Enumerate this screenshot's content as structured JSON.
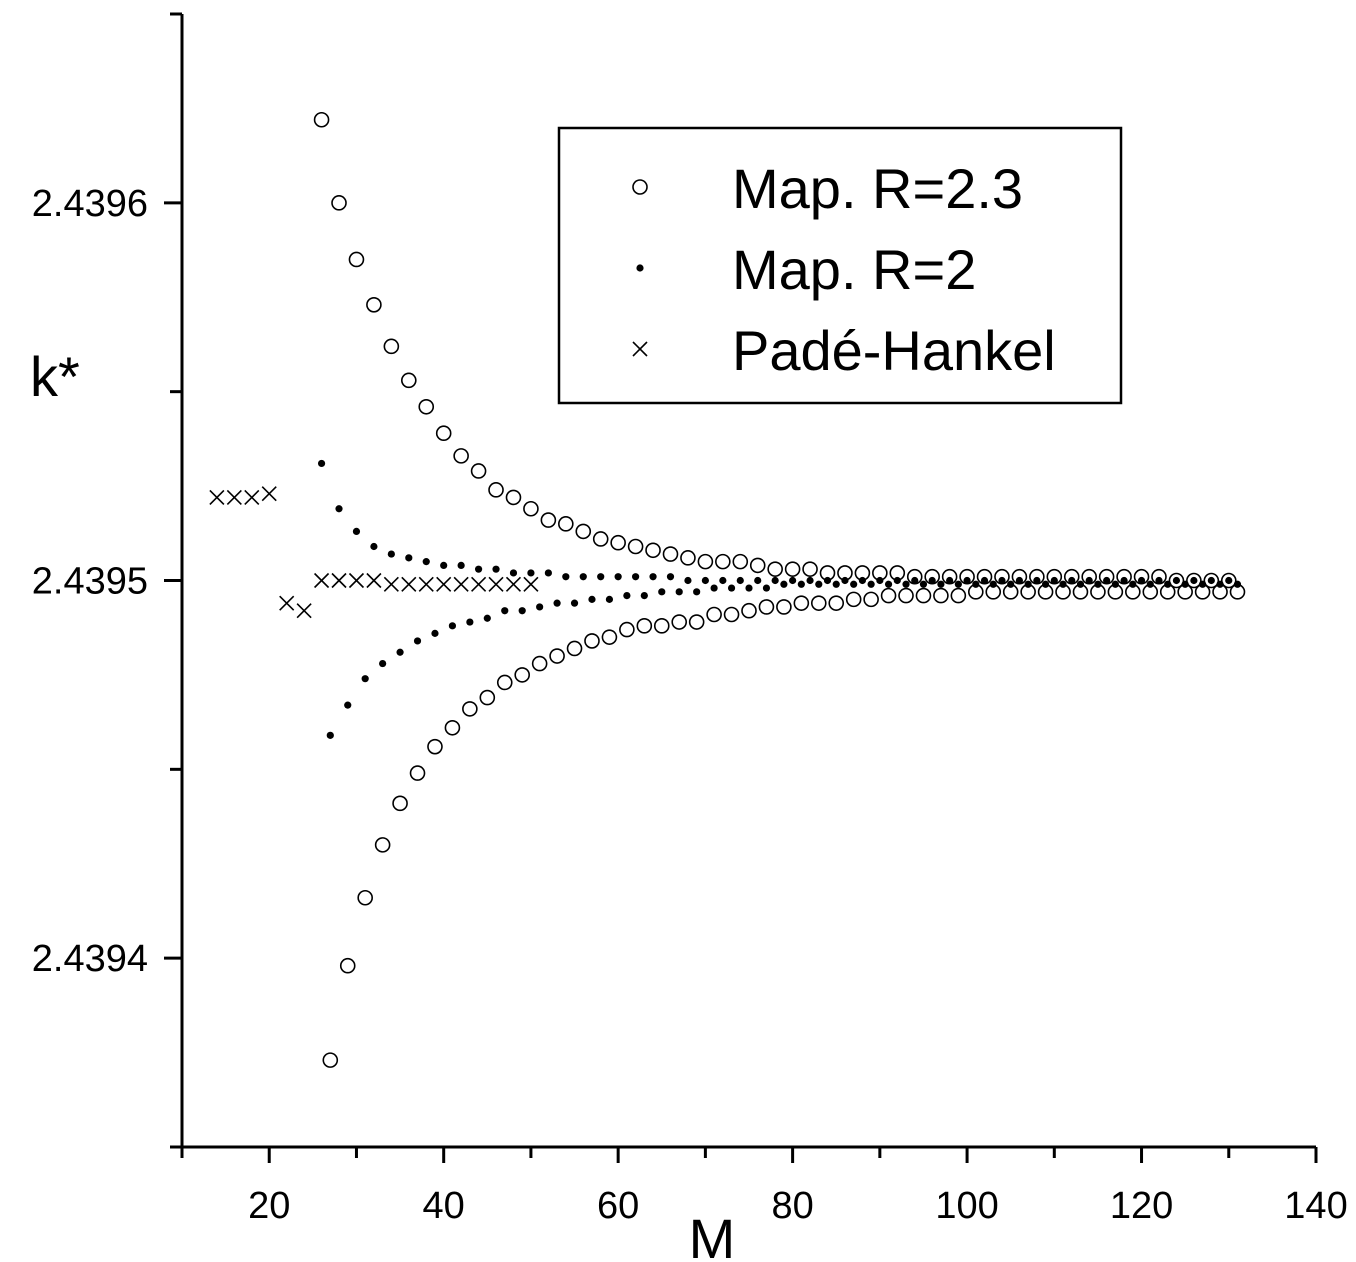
{
  "chart_data": {
    "type": "scatter",
    "xlabel": "M",
    "ylabel": "k*",
    "xlim": [
      10,
      140
    ],
    "ylim": [
      2.43935,
      2.43965
    ],
    "x_ticks": [
      20,
      40,
      60,
      80,
      100,
      120,
      140
    ],
    "x_tick_labels": [
      "20",
      "40",
      "60",
      "80",
      "100",
      "120",
      "140"
    ],
    "y_ticks": [
      2.4394,
      2.4395,
      2.4396
    ],
    "y_tick_labels": [
      "2.4394",
      "2.4395",
      "2.4396"
    ],
    "grid": false,
    "legend_position": "top-right",
    "series": [
      {
        "name": "Map. R=2.3",
        "marker": "open-circle",
        "points": [
          [
            26,
            2.439622
          ],
          [
            27,
            2.439373
          ],
          [
            28,
            2.4396
          ],
          [
            29,
            2.439398
          ],
          [
            30,
            2.439585
          ],
          [
            31,
            2.439416
          ],
          [
            32,
            2.439573
          ],
          [
            33,
            2.43943
          ],
          [
            34,
            2.439562
          ],
          [
            35,
            2.439441
          ],
          [
            36,
            2.439553
          ],
          [
            37,
            2.439449
          ],
          [
            38,
            2.439546
          ],
          [
            39,
            2.439456
          ],
          [
            40,
            2.439539
          ],
          [
            41,
            2.439461
          ],
          [
            42,
            2.439533
          ],
          [
            43,
            2.439466
          ],
          [
            44,
            2.439529
          ],
          [
            45,
            2.439469
          ],
          [
            46,
            2.439524
          ],
          [
            47,
            2.439473
          ],
          [
            48,
            2.439522
          ],
          [
            49,
            2.439475
          ],
          [
            50,
            2.439519
          ],
          [
            51,
            2.439478
          ],
          [
            52,
            2.439516
          ],
          [
            53,
            2.43948
          ],
          [
            54,
            2.439515
          ],
          [
            55,
            2.439482
          ],
          [
            56,
            2.439513
          ],
          [
            57,
            2.439484
          ],
          [
            58,
            2.439511
          ],
          [
            59,
            2.439485
          ],
          [
            60,
            2.43951
          ],
          [
            61,
            2.439487
          ],
          [
            62,
            2.439509
          ],
          [
            63,
            2.439488
          ],
          [
            64,
            2.439508
          ],
          [
            65,
            2.439488
          ],
          [
            66,
            2.439507
          ],
          [
            67,
            2.439489
          ],
          [
            68,
            2.439506
          ],
          [
            69,
            2.439489
          ],
          [
            70,
            2.439505
          ],
          [
            71,
            2.439491
          ],
          [
            72,
            2.439505
          ],
          [
            73,
            2.439491
          ],
          [
            74,
            2.439505
          ],
          [
            75,
            2.439492
          ],
          [
            76,
            2.439504
          ],
          [
            77,
            2.439493
          ],
          [
            78,
            2.439503
          ],
          [
            79,
            2.439493
          ],
          [
            80,
            2.439503
          ],
          [
            81,
            2.439494
          ],
          [
            82,
            2.439503
          ],
          [
            83,
            2.439494
          ],
          [
            84,
            2.439502
          ],
          [
            85,
            2.439494
          ],
          [
            86,
            2.439502
          ],
          [
            87,
            2.439495
          ],
          [
            88,
            2.439502
          ],
          [
            89,
            2.439495
          ],
          [
            90,
            2.439502
          ],
          [
            91,
            2.439496
          ],
          [
            92,
            2.439502
          ],
          [
            93,
            2.439496
          ],
          [
            94,
            2.439501
          ],
          [
            95,
            2.439496
          ],
          [
            96,
            2.439501
          ],
          [
            97,
            2.439496
          ],
          [
            98,
            2.439501
          ],
          [
            99,
            2.439496
          ],
          [
            100,
            2.439501
          ],
          [
            101,
            2.439497
          ],
          [
            102,
            2.439501
          ],
          [
            103,
            2.439497
          ],
          [
            104,
            2.439501
          ],
          [
            105,
            2.439497
          ],
          [
            106,
            2.439501
          ],
          [
            107,
            2.439497
          ],
          [
            108,
            2.439501
          ],
          [
            109,
            2.439497
          ],
          [
            110,
            2.439501
          ],
          [
            111,
            2.439497
          ],
          [
            112,
            2.439501
          ],
          [
            113,
            2.439497
          ],
          [
            114,
            2.439501
          ],
          [
            115,
            2.439497
          ],
          [
            116,
            2.439501
          ],
          [
            117,
            2.439497
          ],
          [
            118,
            2.439501
          ],
          [
            119,
            2.439497
          ],
          [
            120,
            2.439501
          ],
          [
            121,
            2.439497
          ],
          [
            122,
            2.439501
          ],
          [
            123,
            2.439497
          ],
          [
            124,
            2.4395
          ],
          [
            125,
            2.439497
          ],
          [
            126,
            2.4395
          ],
          [
            127,
            2.439497
          ],
          [
            128,
            2.4395
          ],
          [
            129,
            2.439497
          ],
          [
            130,
            2.4395
          ],
          [
            131,
            2.439497
          ]
        ]
      },
      {
        "name": "Map. R=2",
        "marker": "filled-dot",
        "points": [
          [
            26,
            2.439531
          ],
          [
            27,
            2.439459
          ],
          [
            28,
            2.439519
          ],
          [
            29,
            2.439467
          ],
          [
            30,
            2.439513
          ],
          [
            31,
            2.439474
          ],
          [
            32,
            2.439509
          ],
          [
            33,
            2.439478
          ],
          [
            34,
            2.439507
          ],
          [
            35,
            2.439481
          ],
          [
            36,
            2.439506
          ],
          [
            37,
            2.439484
          ],
          [
            38,
            2.439505
          ],
          [
            39,
            2.439486
          ],
          [
            40,
            2.439504
          ],
          [
            41,
            2.439488
          ],
          [
            42,
            2.439504
          ],
          [
            43,
            2.439489
          ],
          [
            44,
            2.439503
          ],
          [
            45,
            2.43949
          ],
          [
            46,
            2.439503
          ],
          [
            47,
            2.439492
          ],
          [
            48,
            2.439502
          ],
          [
            49,
            2.439492
          ],
          [
            50,
            2.439502
          ],
          [
            51,
            2.439493
          ],
          [
            52,
            2.439502
          ],
          [
            53,
            2.439494
          ],
          [
            54,
            2.439501
          ],
          [
            55,
            2.439494
          ],
          [
            56,
            2.439501
          ],
          [
            57,
            2.439495
          ],
          [
            58,
            2.439501
          ],
          [
            59,
            2.439495
          ],
          [
            60,
            2.439501
          ],
          [
            61,
            2.439496
          ],
          [
            62,
            2.439501
          ],
          [
            63,
            2.439496
          ],
          [
            64,
            2.439501
          ],
          [
            65,
            2.439497
          ],
          [
            66,
            2.439501
          ],
          [
            67,
            2.439497
          ],
          [
            68,
            2.4395
          ],
          [
            69,
            2.439497
          ],
          [
            70,
            2.4395
          ],
          [
            71,
            2.439498
          ],
          [
            72,
            2.4395
          ],
          [
            73,
            2.439498
          ],
          [
            74,
            2.4395
          ],
          [
            75,
            2.439498
          ],
          [
            76,
            2.4395
          ],
          [
            77,
            2.439498
          ],
          [
            78,
            2.4395
          ],
          [
            79,
            2.439499
          ],
          [
            80,
            2.4395
          ],
          [
            81,
            2.439499
          ],
          [
            82,
            2.4395
          ],
          [
            83,
            2.439499
          ],
          [
            84,
            2.4395
          ],
          [
            85,
            2.439499
          ],
          [
            86,
            2.4395
          ],
          [
            87,
            2.439499
          ],
          [
            88,
            2.4395
          ],
          [
            89,
            2.439499
          ],
          [
            90,
            2.4395
          ],
          [
            91,
            2.439499
          ],
          [
            92,
            2.4395
          ],
          [
            93,
            2.439499
          ],
          [
            94,
            2.4395
          ],
          [
            95,
            2.439499
          ],
          [
            96,
            2.4395
          ],
          [
            97,
            2.439499
          ],
          [
            98,
            2.4395
          ],
          [
            99,
            2.439499
          ],
          [
            100,
            2.4395
          ],
          [
            101,
            2.439499
          ],
          [
            102,
            2.4395
          ],
          [
            103,
            2.439499
          ],
          [
            104,
            2.4395
          ],
          [
            105,
            2.439499
          ],
          [
            106,
            2.4395
          ],
          [
            107,
            2.439499
          ],
          [
            108,
            2.4395
          ],
          [
            109,
            2.439499
          ],
          [
            110,
            2.4395
          ],
          [
            111,
            2.439499
          ],
          [
            112,
            2.4395
          ],
          [
            113,
            2.439499
          ],
          [
            114,
            2.4395
          ],
          [
            115,
            2.439499
          ],
          [
            116,
            2.4395
          ],
          [
            117,
            2.439499
          ],
          [
            118,
            2.4395
          ],
          [
            119,
            2.439499
          ],
          [
            120,
            2.4395
          ],
          [
            121,
            2.439499
          ],
          [
            122,
            2.4395
          ],
          [
            123,
            2.439499
          ],
          [
            124,
            2.4395
          ],
          [
            125,
            2.439499
          ],
          [
            126,
            2.4395
          ],
          [
            127,
            2.439499
          ],
          [
            128,
            2.4395
          ],
          [
            129,
            2.439499
          ],
          [
            130,
            2.4395
          ],
          [
            131,
            2.439499
          ]
        ]
      },
      {
        "name": "Padé-Hankel",
        "marker": "cross",
        "points": [
          [
            14,
            2.439522
          ],
          [
            16,
            2.439522
          ],
          [
            18,
            2.439522
          ],
          [
            20,
            2.439523
          ],
          [
            22,
            2.439494
          ],
          [
            24,
            2.439492
          ],
          [
            26,
            2.4395
          ],
          [
            28,
            2.4395
          ],
          [
            30,
            2.4395
          ],
          [
            32,
            2.4395
          ],
          [
            34,
            2.439499
          ],
          [
            36,
            2.439499
          ],
          [
            38,
            2.439499
          ],
          [
            40,
            2.439499
          ],
          [
            42,
            2.439499
          ],
          [
            44,
            2.439499
          ],
          [
            46,
            2.439499
          ],
          [
            48,
            2.439499
          ],
          [
            50,
            2.439499
          ]
        ]
      }
    ]
  }
}
